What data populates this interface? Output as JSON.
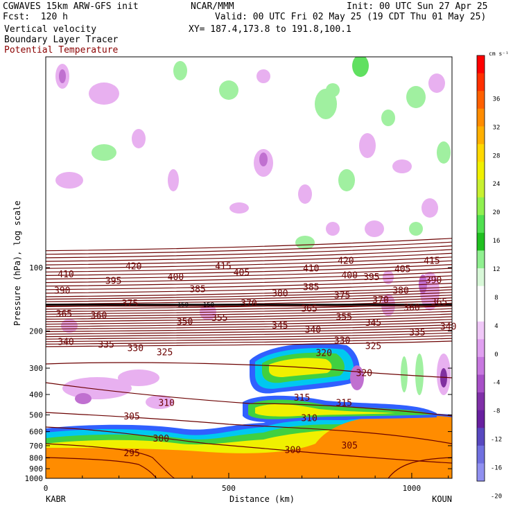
{
  "header": {
    "left1": "CGWAVES 15km ARW-GFS init",
    "left2": "Fcst:  120 h",
    "left3": "Vertical velocity",
    "left4": "Boundary Layer Tracer",
    "left5": "Potential Temperature",
    "center1": "NCAR/MMM",
    "right1": "Init: 00 UTC Sun 27 Apr 25",
    "right2": "Valid: 00 UTC Fri 02 May 25 (19 CDT Thu 01 May 25)",
    "right3": "XY= 187.4,173.8 to 191.8,100.1"
  },
  "colors": {
    "theta": "#6b0000",
    "tracer_orange": "#ff8c00",
    "tracer_lorange": "#ffa020",
    "tracer_yellow": "#f0f000",
    "tracer_lgreen": "#a8f060",
    "tracer_green": "#40d040",
    "tracer_cyan": "#00c8f0",
    "tracer_blue": "#3060ff",
    "up_light": "#a0f0a0",
    "up_mid": "#60e060",
    "down_light": "#e8b0f0",
    "down_mid": "#c070d0",
    "down_dark": "#8030a0"
  },
  "chart_data": {
    "type": "heatmap",
    "title": "Vertical velocity / Boundary Layer Tracer / Potential Temperature",
    "xlabel": "Distance (km)",
    "ylabel": "Pressure (hPa), log scale",
    "xlim": [
      0,
      1110
    ],
    "ylim": [
      1000,
      10
    ],
    "y_scale": "log",
    "x_ticks": [
      0,
      500,
      1000
    ],
    "y_ticks": [
      100,
      200,
      300,
      400,
      500,
      600,
      700,
      800,
      900,
      1000
    ],
    "endpoints": {
      "left": "KABR",
      "right": "KOUN"
    },
    "colorbar": {
      "unit": "cm s⁻¹",
      "labels": [
        36,
        32,
        28,
        24,
        20,
        16,
        12,
        8,
        4,
        0,
        -4,
        -8,
        -12,
        -16,
        -20
      ],
      "colors": [
        "#ff0000",
        "#ff3000",
        "#ff6000",
        "#ff8c00",
        "#ffb000",
        "#ffd800",
        "#f0f000",
        "#c8f030",
        "#90f050",
        "#50e050",
        "#20c020",
        "#90f090",
        "#d8f8d8",
        "#ffffff",
        "#ffffff",
        "#f0c8f8",
        "#e0a0f0",
        "#c878e0",
        "#a850c8",
        "#8030a8",
        "#6820a0",
        "#5848c0",
        "#7070e0",
        "#9090f0"
      ]
    },
    "theta_isentropes": [
      {
        "value": 295,
        "label_x": 235,
        "label_p": 760
      },
      {
        "value": 300,
        "label_x": 315,
        "label_p": 650
      },
      {
        "value": 300,
        "label_x": 675,
        "label_p": 735
      },
      {
        "value": 305,
        "label_x": 235,
        "label_p": 510
      },
      {
        "value": 305,
        "label_x": 830,
        "label_p": 700
      },
      {
        "value": 310,
        "label_x": 330,
        "label_p": 440
      },
      {
        "value": 310,
        "label_x": 720,
        "label_p": 520
      },
      {
        "value": 315,
        "label_x": 700,
        "label_p": 415
      },
      {
        "value": 315,
        "label_x": 815,
        "label_p": 440
      },
      {
        "value": 320,
        "label_x": 760,
        "label_p": 255
      },
      {
        "value": 320,
        "label_x": 870,
        "label_p": 318
      },
      {
        "value": 325,
        "label_x": 325,
        "label_p": 253
      },
      {
        "value": 325,
        "label_x": 895,
        "label_p": 236
      },
      {
        "value": 330,
        "label_x": 245,
        "label_p": 242
      },
      {
        "value": 330,
        "label_x": 810,
        "label_p": 222
      },
      {
        "value": 335,
        "label_x": 165,
        "label_p": 233
      },
      {
        "value": 335,
        "label_x": 1015,
        "label_p": 204
      },
      {
        "value": 340,
        "label_x": 55,
        "label_p": 226
      },
      {
        "value": 340,
        "label_x": 730,
        "label_p": 198
      },
      {
        "value": 340,
        "label_x": 1100,
        "label_p": 191
      },
      {
        "value": 345,
        "label_x": 640,
        "label_p": 189
      },
      {
        "value": 345,
        "label_x": 895,
        "label_p": 183
      },
      {
        "value": 350,
        "label_x": 380,
        "label_p": 181
      },
      {
        "value": 355,
        "label_x": 475,
        "label_p": 174
      },
      {
        "value": 355,
        "label_x": 815,
        "label_p": 172
      },
      {
        "value": 360,
        "label_x": 145,
        "label_p": 169
      },
      {
        "value": 360,
        "label_x": 1000,
        "label_p": 155
      },
      {
        "value": 365,
        "label_x": 50,
        "label_p": 166
      },
      {
        "value": 365,
        "label_x": 720,
        "label_p": 157
      },
      {
        "value": 365,
        "label_x": 1075,
        "label_p": 146
      },
      {
        "value": 370,
        "label_x": 555,
        "label_p": 148
      },
      {
        "value": 370,
        "label_x": 915,
        "label_p": 143
      },
      {
        "value": 375,
        "label_x": 230,
        "label_p": 148
      },
      {
        "value": 375,
        "label_x": 810,
        "label_p": 136
      },
      {
        "value": 380,
        "label_x": 640,
        "label_p": 133
      },
      {
        "value": 380,
        "label_x": 970,
        "label_p": 129
      },
      {
        "value": 385,
        "label_x": 415,
        "label_p": 127
      },
      {
        "value": 385,
        "label_x": 725,
        "label_p": 124
      },
      {
        "value": 390,
        "label_x": 45,
        "label_p": 129
      },
      {
        "value": 390,
        "label_x": 1060,
        "label_p": 115
      },
      {
        "value": 395,
        "label_x": 185,
        "label_p": 116
      },
      {
        "value": 395,
        "label_x": 890,
        "label_p": 111
      },
      {
        "value": 400,
        "label_x": 355,
        "label_p": 111
      },
      {
        "value": 400,
        "label_x": 830,
        "label_p": 109
      },
      {
        "value": 405,
        "label_x": 535,
        "label_p": 106
      },
      {
        "value": 405,
        "label_x": 975,
        "label_p": 102
      },
      {
        "value": 410,
        "label_x": 55,
        "label_p": 108
      },
      {
        "value": 410,
        "label_x": 725,
        "label_p": 101
      },
      {
        "value": 415,
        "label_x": 485,
        "label_p": 99
      },
      {
        "value": 415,
        "label_x": 1055,
        "label_p": 93
      },
      {
        "value": 420,
        "label_x": 240,
        "label_p": 99
      },
      {
        "value": 420,
        "label_x": 820,
        "label_p": 93
      }
    ],
    "tropopause_label": "150",
    "tropopause_p": 150,
    "tropopause_label_x": [
      375,
      445
    ]
  }
}
